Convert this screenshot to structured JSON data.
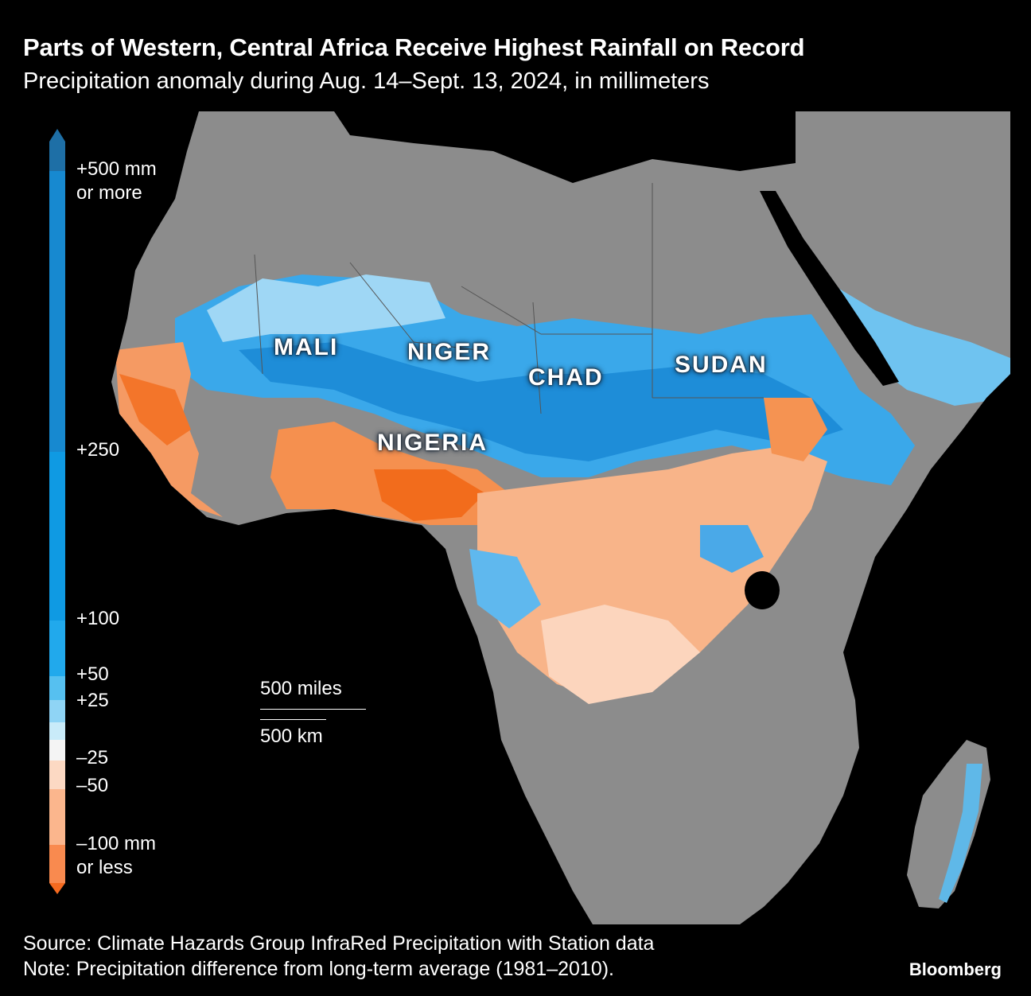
{
  "title": "Parts of Western, Central Africa Receive Highest Rainfall on Record",
  "subtitle": "Precipitation anomaly during Aug. 14–Sept. 13, 2024, in millimeters",
  "legend": {
    "labels": [
      "+500 mm\nor more",
      "+250",
      "+100",
      "+50",
      "+25",
      "–25",
      "–50",
      "–100 mm\nor less"
    ],
    "colors": [
      "#1e6fa6",
      "#1789d0",
      "#0f9ae3",
      "#21a9ec",
      "#56c0f0",
      "#8fd4f5",
      "#c9ebf9",
      "#f4f4f4",
      "#fcd9c3",
      "#fbb68d",
      "#f98a4f",
      "#f56a1f"
    ]
  },
  "countries": [
    "MALI",
    "NIGER",
    "CHAD",
    "SUDAN",
    "NIGERIA"
  ],
  "scale": {
    "miles": "500 miles",
    "km": "500 km"
  },
  "source": "Source: Climate Hazards Group InfraRed Precipitation with Station data",
  "note": "Note: Precipitation difference from long-term average (1981–2010).",
  "brand": "Bloomberg",
  "colors": {
    "land": "#8c8c8c",
    "water": "#000000",
    "wet": "#2a9fe6",
    "dry": "#f37f3c",
    "light_wet": "#a8dcf6",
    "light_dry": "#fcd2b8"
  }
}
